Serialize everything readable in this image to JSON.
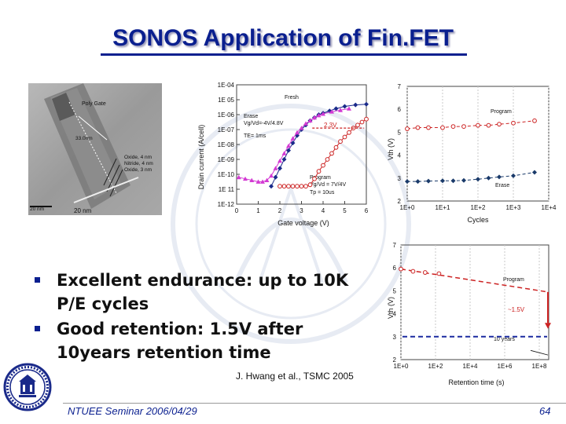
{
  "slide": {
    "title": "SONOS Application of Fin.FET",
    "bullets": [
      "Excellent endurance:  up to 10K P/E cycles",
      "Good retention: 1.5V after 10years retention time"
    ],
    "citation": "J. Hwang et al., TSMC 2005",
    "footer_left": "NTUEE Seminar 2006/04/29",
    "page_number": "64"
  },
  "tem_image": {
    "labels": {
      "poly_gate": "Poly Gate",
      "dim": "33.0nm",
      "oxide_top": "Oxide, 4 nm",
      "nitride": "Nitride, 4 nm",
      "oxide_bottom": "Oxide, 3 nm",
      "scale_a": "20 nm",
      "scale_b": "20 nm"
    }
  },
  "chart_data": [
    {
      "type": "line",
      "xlabel": "Gate voltage (V)",
      "ylabel": "Drain current (A/cell)",
      "x_ticks": [
        "0",
        "1",
        "2",
        "3",
        "4",
        "5",
        "6"
      ],
      "y_ticks": [
        "1E-04",
        "1E 05",
        "1E-06",
        "1E-07",
        "1E-08",
        "1E-09",
        "1E-10",
        "1E 11",
        "1E-12"
      ],
      "xlim": [
        0,
        6
      ],
      "ylim_log10": [
        -12,
        -4
      ],
      "annotations": {
        "fresh": "Fresh",
        "erase": "Erase",
        "erase_cond": "Vg/Vd=-4V/4.8V",
        "erase_time": "TE= 1ms",
        "shift": "2.3V",
        "program": "Program",
        "program_cond": "Vg/Vd = 7V/4V",
        "program_time": "Tp = 10us"
      },
      "series": [
        {
          "marker": "diamond",
          "color": "#1a2a8a",
          "x": [
            1.6,
            1.8,
            2.0,
            2.2,
            2.4,
            2.6,
            2.8,
            3.0,
            3.2,
            3.4,
            3.6,
            3.8,
            4.0,
            4.3,
            4.6,
            5.0,
            5.5,
            6.0
          ],
          "y_log10": [
            -10.8,
            -10.2,
            -9.6,
            -9.0,
            -8.4,
            -7.9,
            -7.4,
            -7.0,
            -6.7,
            -6.4,
            -6.2,
            -6.0,
            -5.9,
            -5.75,
            -5.6,
            -5.45,
            -5.35,
            -5.3
          ]
        },
        {
          "marker": "triangle",
          "color": "#d33ad3",
          "x": [
            0.1,
            0.4,
            0.7,
            1.0,
            1.2,
            1.4,
            1.6,
            1.8,
            2.0,
            2.2,
            2.4,
            2.6,
            2.8,
            3.0,
            3.2,
            3.4,
            3.6,
            3.8,
            4.0,
            4.4,
            4.8,
            5.2
          ],
          "y_log10": [
            -10.2,
            -10.3,
            -10.4,
            -10.5,
            -10.5,
            -10.4,
            -10.1,
            -9.6,
            -9.1,
            -8.6,
            -8.1,
            -7.6,
            -7.2,
            -6.9,
            -6.6,
            -6.4,
            -6.2,
            -6.05,
            -5.95,
            -5.8,
            -5.7,
            -5.6
          ]
        },
        {
          "marker": "circle",
          "color": "#cc2222",
          "x": [
            2.0,
            2.2,
            2.4,
            2.6,
            2.8,
            3.0,
            3.2,
            3.4,
            3.6,
            3.8,
            4.0,
            4.2,
            4.4,
            4.6,
            4.8,
            5.0,
            5.2,
            5.4,
            5.6,
            5.8,
            6.0
          ],
          "y_log10": [
            -10.8,
            -10.8,
            -10.8,
            -10.8,
            -10.8,
            -10.8,
            -10.8,
            -10.7,
            -10.3,
            -9.8,
            -9.4,
            -9.0,
            -8.6,
            -8.2,
            -7.8,
            -7.5,
            -7.2,
            -6.9,
            -6.7,
            -6.5,
            -6.3
          ]
        }
      ]
    },
    {
      "type": "line",
      "xlabel": "Cycles",
      "ylabel": "Vth (V)",
      "x_ticks": [
        "1E+0",
        "1E+1",
        "1E+2",
        "1E+3",
        "1E+4"
      ],
      "y_ticks": [
        "2",
        "3",
        "4",
        "5",
        "6",
        "7"
      ],
      "xlim_log10": [
        0,
        4
      ],
      "ylim": [
        2,
        7
      ],
      "series": [
        {
          "name": "Program",
          "color": "#cc2222",
          "marker": "circle",
          "x_log10": [
            0,
            0.3,
            0.6,
            1.0,
            1.3,
            1.6,
            2.0,
            2.3,
            2.6,
            3.0,
            3.6
          ],
          "y": [
            5.15,
            5.2,
            5.2,
            5.2,
            5.25,
            5.25,
            5.3,
            5.3,
            5.35,
            5.4,
            5.5
          ]
        },
        {
          "name": "Erase",
          "color": "#1a3a6a",
          "marker": "diamond",
          "x_log10": [
            0,
            0.3,
            0.6,
            1.0,
            1.3,
            1.6,
            2.0,
            2.3,
            2.6,
            3.0,
            3.6
          ],
          "y": [
            2.85,
            2.85,
            2.87,
            2.88,
            2.88,
            2.9,
            2.95,
            3.0,
            3.05,
            3.1,
            3.25
          ]
        }
      ]
    },
    {
      "type": "line",
      "xlabel": "Retention time (s)",
      "ylabel": "Vth (V)",
      "x_ticks": [
        "1E+0",
        "1E+2",
        "1E+4",
        "1E+6",
        "1E+8"
      ],
      "y_ticks": [
        "2",
        "3",
        "4",
        "5",
        "6",
        "7"
      ],
      "xlim_log10": [
        0,
        8
      ],
      "ylim": [
        2,
        7
      ],
      "annotations": {
        "program": "Program",
        "shift": "~1.5V",
        "ten_years": "10 years"
      },
      "series": [
        {
          "name": "Program",
          "color": "#cc2222",
          "marker": "circle",
          "x_log10": [
            0,
            0.7,
            1.4,
            2.2
          ],
          "y": [
            5.95,
            5.85,
            5.8,
            5.75
          ]
        }
      ],
      "reference_lines": [
        {
          "kind": "trend",
          "color": "#cc2222",
          "x_log10": [
            0,
            8.5
          ],
          "y": [
            5.95,
            4.95
          ]
        },
        {
          "kind": "erase-level",
          "color": "#1a2aa0",
          "y": 3.0
        },
        {
          "kind": "ten-years",
          "color": "#cc2222",
          "x_log10": 8.5
        }
      ]
    }
  ]
}
